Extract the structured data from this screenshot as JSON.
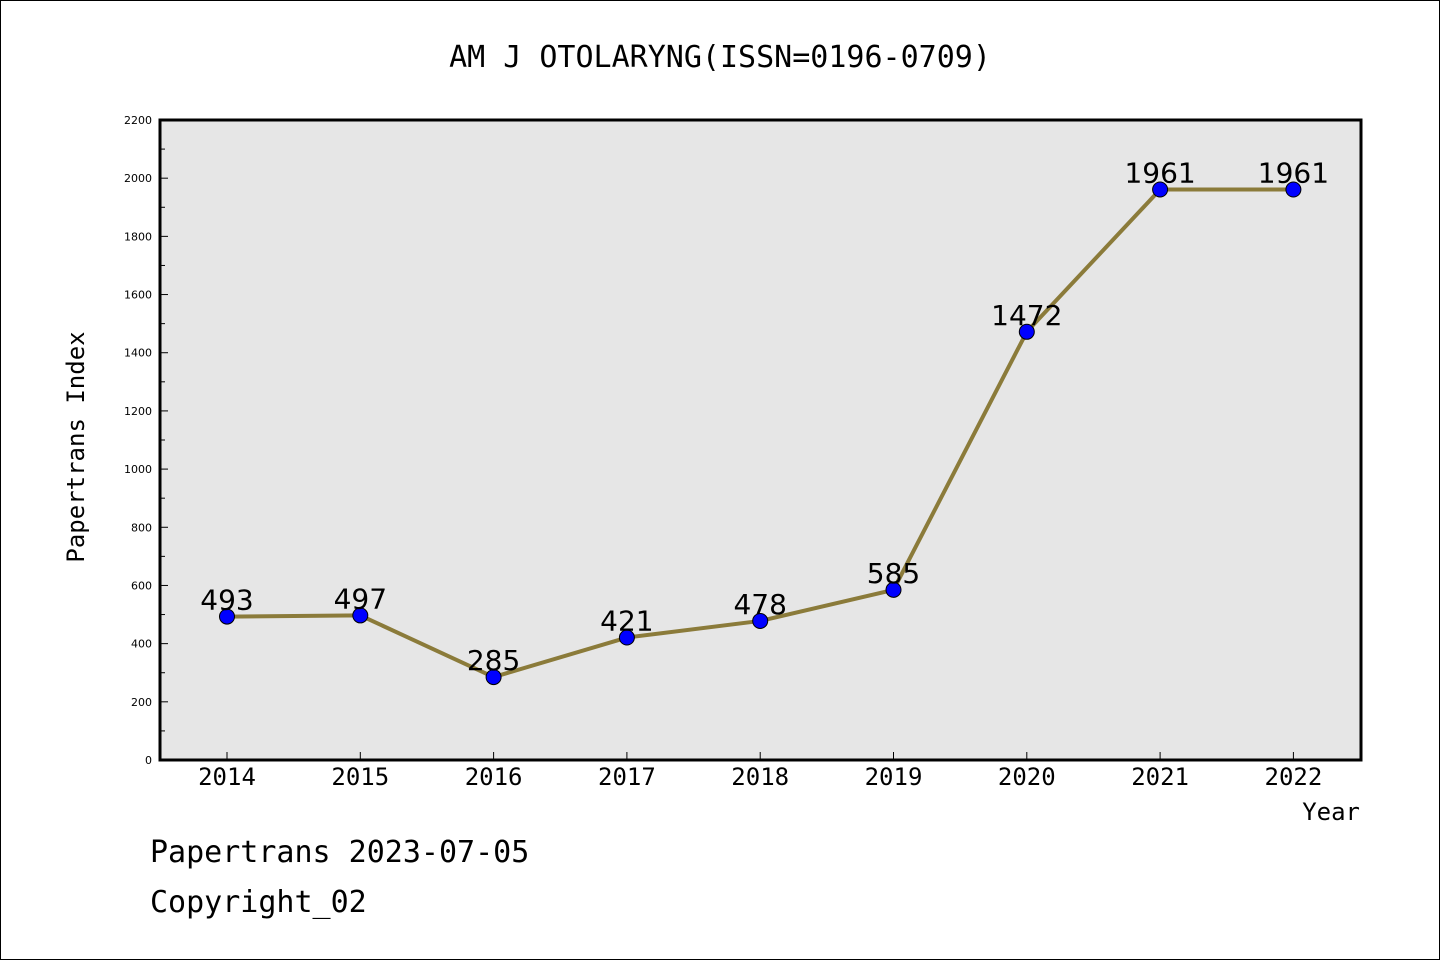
{
  "footer": {
    "line1": "Papertrans 2023-07-05",
    "line2": "Copyright_02"
  },
  "colors": {
    "plot_bg": "#e6e6e6",
    "line": "#8b7b3a",
    "marker": "#0000ff",
    "axis": "#000000"
  },
  "chart_data": {
    "type": "line",
    "title": "AM J OTOLARYNG(ISSN=0196-0709)",
    "xlabel": "Year",
    "ylabel": "Papertrans Index",
    "ylim": [
      0,
      2200
    ],
    "yticks": [
      0,
      200,
      400,
      600,
      800,
      1000,
      1200,
      1400,
      1600,
      1800,
      2000,
      2200
    ],
    "categories": [
      "2014",
      "2015",
      "2016",
      "2017",
      "2018",
      "2019",
      "2020",
      "2021",
      "2022"
    ],
    "series": [
      {
        "values": [
          493,
          497,
          285,
          421,
          478,
          585,
          1472,
          1961,
          1961
        ],
        "labels": [
          "493",
          "497",
          "285",
          "421",
          "478",
          "585",
          "1472",
          "1961",
          "1961"
        ]
      }
    ],
    "grid": false,
    "legend": "none"
  }
}
